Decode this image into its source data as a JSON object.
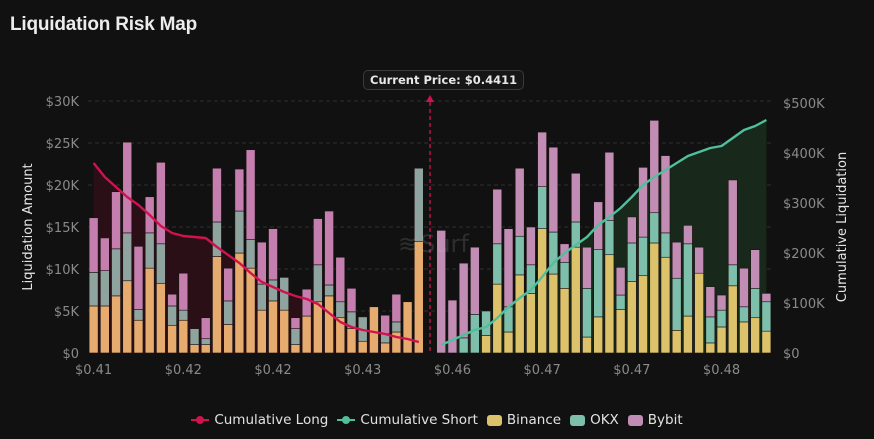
{
  "header": {
    "title": "Liquidation Risk Map"
  },
  "current_price": {
    "label": "Current Price: $0.4411",
    "value": 0.4411
  },
  "watermark": {
    "text": "Surf",
    "icon": "surf-wave-icon"
  },
  "colors": {
    "cumulative_long": "#d0134f",
    "cumulative_short": "#4fbf9c",
    "binance": "#dcc36b",
    "okx": "#7ebfab",
    "bybit": "#c28db4",
    "long_area": "#2a0f17",
    "short_area": "#18281a"
  },
  "legend": [
    {
      "label": "Cumulative Long",
      "type": "line",
      "color_key": "cumulative_long"
    },
    {
      "label": "Cumulative Short",
      "type": "line",
      "color_key": "cumulative_short"
    },
    {
      "label": "Binance",
      "type": "box",
      "color_key": "binance"
    },
    {
      "label": "OKX",
      "type": "box",
      "color_key": "okx"
    },
    {
      "label": "Bybit",
      "type": "box",
      "color_key": "bybit"
    }
  ],
  "chart_data": {
    "type": "bar",
    "stacked": true,
    "title": "Liquidation Risk Map",
    "xlabel": "",
    "ylabel": "Liquidation Amount",
    "y2label": "Cumulative Liquidation",
    "ylim": [
      0,
      30000
    ],
    "y2lim": [
      0,
      500000
    ],
    "y_ticks": [
      "$0",
      "$5K",
      "$10K",
      "$15K",
      "$20K",
      "$25K",
      "$30K"
    ],
    "y2_ticks": [
      "$0",
      "$100K",
      "$200K",
      "$300K",
      "$400K",
      "$500K"
    ],
    "x_tick_labels": [
      {
        "slot": 0,
        "label": "$0.41"
      },
      {
        "slot": 8,
        "label": "$0.42"
      },
      {
        "slot": 16,
        "label": "$0.42"
      },
      {
        "slot": 24,
        "label": "$0.43"
      },
      {
        "slot": 32,
        "label": "$0.46"
      },
      {
        "slot": 40,
        "label": "$0.47"
      },
      {
        "slot": 48,
        "label": "$0.47"
      },
      {
        "slot": 56,
        "label": "$0.48"
      }
    ],
    "grid": true,
    "legend_position": "bottom",
    "current_price_slot": 30,
    "long_side": {
      "slots": [
        0,
        1,
        2,
        3,
        4,
        5,
        6,
        7,
        8,
        9,
        10,
        11,
        12,
        13,
        14,
        15,
        16,
        17,
        18,
        19,
        20,
        21,
        22,
        23,
        24,
        25,
        26,
        27,
        28,
        29
      ],
      "binance": [
        5600,
        5600,
        6800,
        8600,
        3900,
        10100,
        8300,
        3300,
        3900,
        1000,
        1000,
        11500,
        3400,
        11900,
        10100,
        5100,
        6200,
        5100,
        1000,
        4400,
        6100,
        6800,
        4200,
        2900,
        1400,
        5500,
        1200,
        2500,
        6100,
        13300
      ],
      "okx": [
        4000,
        4200,
        5600,
        5700,
        1300,
        4200,
        4700,
        2300,
        1200,
        1900,
        700,
        4100,
        2800,
        5000,
        3400,
        3100,
        2500,
        3900,
        1900,
        0,
        4400,
        1300,
        1900,
        2000,
        2900,
        0,
        1100,
        1200,
        0,
        8700
      ],
      "bybit": [
        6500,
        3900,
        6800,
        10800,
        7500,
        4300,
        9700,
        1400,
        4400,
        0,
        2500,
        6400,
        3900,
        5000,
        10700,
        5000,
        6100,
        0,
        1300,
        3200,
        5500,
        8800,
        5300,
        2800,
        0,
        0,
        2200,
        3300,
        0,
        0
      ],
      "cumulative_long": [
        380000,
        352000,
        332000,
        312000,
        296000,
        276000,
        254000,
        240000,
        234000,
        232000,
        230000,
        212000,
        196000,
        180000,
        160000,
        142000,
        132000,
        122000,
        114000,
        108000,
        98000,
        80000,
        62000,
        52000,
        46000,
        42000,
        38000,
        32000,
        28000,
        22000
      ]
    },
    "short_side": {
      "slots": [
        31,
        32,
        33,
        34,
        35,
        36,
        37,
        38,
        39,
        40,
        41,
        42,
        43,
        44,
        45,
        46,
        47,
        48,
        49,
        50,
        51,
        52,
        53,
        54,
        55,
        56,
        57,
        58,
        59,
        60
      ],
      "binance": [
        0,
        0,
        0,
        0,
        2100,
        8200,
        2500,
        9300,
        7100,
        14800,
        9400,
        7700,
        12600,
        1900,
        4300,
        11700,
        5200,
        8500,
        9200,
        13100,
        11400,
        2700,
        4400,
        9500,
        1200,
        3100,
        8000,
        3700,
        4200,
        2600
      ],
      "okx": [
        0,
        0,
        1800,
        4600,
        2900,
        4800,
        3000,
        4600,
        3400,
        5000,
        5000,
        3100,
        3000,
        5800,
        8000,
        4100,
        1700,
        4600,
        4600,
        3600,
        2900,
        6200,
        8600,
        0,
        3100,
        2000,
        2500,
        1800,
        3500,
        3500
      ],
      "bybit": [
        14600,
        6300,
        8900,
        8000,
        0,
        6500,
        9300,
        8100,
        4500,
        6500,
        10100,
        2200,
        5800,
        4900,
        5700,
        8100,
        3300,
        3100,
        8300,
        11000,
        9200,
        4300,
        2200,
        3100,
        3600,
        1800,
        10100,
        4600,
        4600,
        1000
      ],
      "cumulative_short": [
        16000,
        26000,
        36000,
        46000,
        52000,
        70000,
        92000,
        110000,
        126000,
        152000,
        180000,
        200000,
        216000,
        232000,
        256000,
        272000,
        290000,
        312000,
        336000,
        352000,
        366000,
        380000,
        394000,
        402000,
        410000,
        414000,
        430000,
        446000,
        454000,
        466000
      ]
    }
  }
}
